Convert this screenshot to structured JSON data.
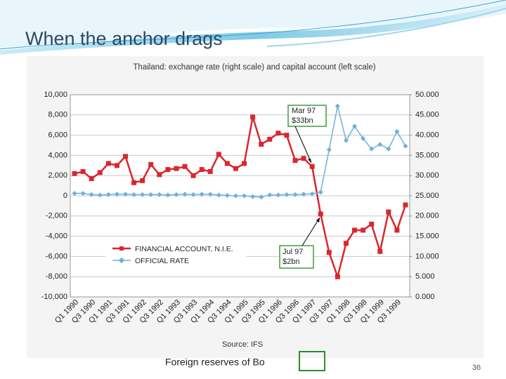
{
  "slide_title": "When the anchor drags",
  "chart_data": {
    "type": "line",
    "title": "Thailand: exchange rate (right scale) and capital account (left scale)",
    "categories": [
      "Q1 1990",
      null,
      "Q3 1990",
      null,
      "Q1 1991",
      null,
      "Q3 1991",
      null,
      "Q1 1992",
      null,
      "Q3 1992",
      null,
      "Q1 1993",
      null,
      "Q3 1993",
      null,
      "Q1 1994",
      null,
      "Q3 1994",
      null,
      "Q1 1995",
      null,
      "Q3 1995",
      null,
      "Q1 1996",
      null,
      "Q3 1996",
      null,
      "Q1 1997",
      null,
      "Q3 1997",
      null,
      "Q1 1998",
      null,
      "Q3 1998",
      null,
      "Q1 1999",
      null,
      "Q3 1999",
      null
    ],
    "series": [
      {
        "name": "FINANCIAL ACCOUNT, N.I.E.",
        "color": "#d9272e",
        "axis": "y",
        "values": [
          2200,
          2400,
          1700,
          2300,
          3200,
          3000,
          3900,
          1300,
          1500,
          3100,
          2100,
          2600,
          2700,
          2900,
          2000,
          2600,
          2400,
          4100,
          3200,
          2700,
          3200,
          7800,
          5100,
          5600,
          6200,
          6000,
          3500,
          3700,
          2900,
          -1800,
          -5600,
          -8000,
          -4700,
          -3400,
          -3400,
          -2800,
          -5500,
          -1600,
          -3400,
          -900
        ]
      },
      {
        "name": "OFFICIAL RATE",
        "color": "#6fb0dc",
        "axis": "y2",
        "values": [
          25.6,
          25.6,
          25.3,
          25.2,
          25.3,
          25.4,
          25.4,
          25.3,
          25.3,
          25.3,
          25.3,
          25.2,
          25.3,
          25.4,
          25.3,
          25.4,
          25.4,
          25.2,
          25.1,
          25.0,
          25.0,
          24.8,
          24.7,
          25.2,
          25.2,
          25.3,
          25.3,
          25.4,
          25.5,
          25.9,
          36.4,
          47.2,
          38.7,
          42.2,
          39.2,
          36.6,
          37.7,
          36.6,
          40.9,
          37.3
        ]
      }
    ],
    "ylim": [
      -10000,
      10000
    ],
    "yticks": [
      {
        "value": -10000,
        "label": "-10,000"
      },
      {
        "value": -8000,
        "label": "-8,000"
      },
      {
        "value": -6000,
        "label": "-6,000"
      },
      {
        "value": -4000,
        "label": "-4,000"
      },
      {
        "value": -2000,
        "label": "-2,000"
      },
      0,
      {
        "value": 2000,
        "label": "2,000"
      },
      {
        "value": 4000,
        "label": "4,000"
      },
      {
        "value": 6000,
        "label": "6,000"
      },
      {
        "value": 8000,
        "label": "8,000"
      },
      {
        "value": 10000,
        "label": "10,000"
      }
    ],
    "y2lim": [
      0,
      50
    ],
    "y2ticks": [
      {
        "value": 0,
        "label": "0.000"
      },
      {
        "value": 5,
        "label": "5.000"
      },
      {
        "value": 10,
        "label": "10.000"
      },
      {
        "value": 15,
        "label": "15.000"
      },
      {
        "value": 20,
        "label": "20.000"
      },
      {
        "value": 25,
        "label": "25.000"
      },
      {
        "value": 30,
        "label": "30.000"
      },
      {
        "value": 35,
        "label": "35.000"
      },
      {
        "value": 40,
        "label": "40.000"
      },
      {
        "value": 45,
        "label": "45.000"
      },
      {
        "value": 50,
        "label": "50.000"
      }
    ],
    "grid": true,
    "annotations": [
      {
        "lines": [
          "Mar 97",
          "$33bn"
        ]
      },
      {
        "lines": [
          "Jul 97",
          "$2bn"
        ]
      }
    ],
    "source": "Source: IFS"
  },
  "footer_text": "Foreign reserves of Bo",
  "page_number": "36"
}
